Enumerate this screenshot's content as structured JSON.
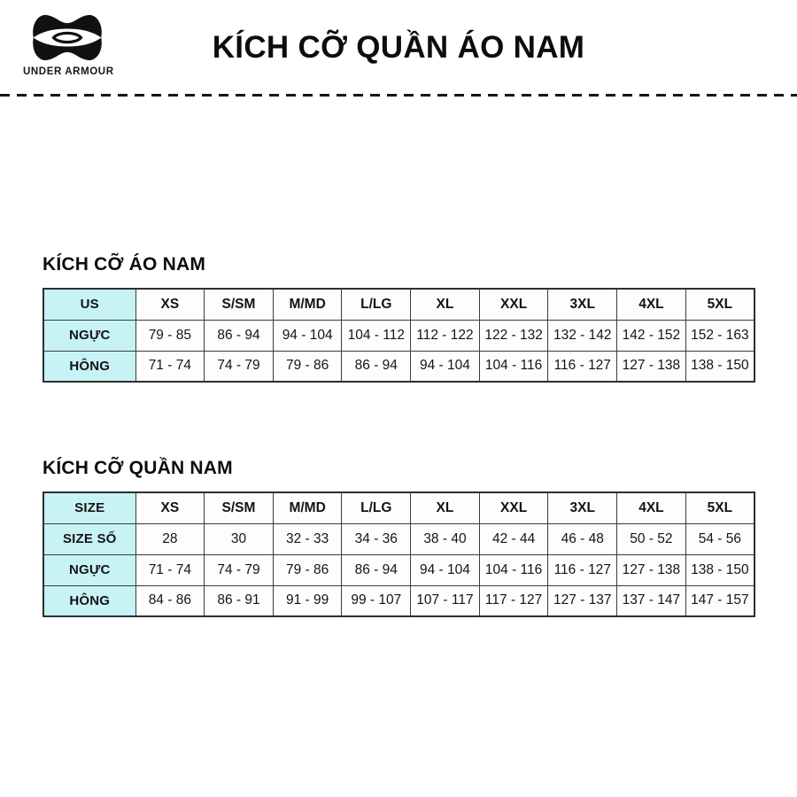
{
  "brand": {
    "name": "UNDER ARMOUR"
  },
  "title": "KÍCH CỠ QUẦN ÁO NAM",
  "colors": {
    "accent_cell": "#c7f3f5",
    "border": "#3c3c3c",
    "text": "#111111",
    "background": "#ffffff"
  },
  "tables": [
    {
      "section_title": "KÍCH CỠ ÁO NAM",
      "header": [
        "US",
        "XS",
        "S/SM",
        "M/MD",
        "L/LG",
        "XL",
        "XXL",
        "3XL",
        "4XL",
        "5XL"
      ],
      "rows": [
        {
          "label": "NGỰC",
          "values": [
            "79 - 85",
            "86 - 94",
            "94 - 104",
            "104 - 112",
            "112 - 122",
            "122 - 132",
            "132 - 142",
            "142 - 152",
            "152 - 163"
          ]
        },
        {
          "label": "HÔNG",
          "values": [
            "71 - 74",
            "74 - 79",
            "79 - 86",
            "86 - 94",
            "94 - 104",
            "104 - 116",
            "116 - 127",
            "127 - 138",
            "138 - 150"
          ]
        }
      ]
    },
    {
      "section_title": "KÍCH CỠ QUẦN NAM",
      "header": [
        "SIZE",
        "XS",
        "S/SM",
        "M/MD",
        "L/LG",
        "XL",
        "XXL",
        "3XL",
        "4XL",
        "5XL"
      ],
      "rows": [
        {
          "label": "SIZE SỐ",
          "values": [
            "28",
            "30",
            "32 - 33",
            "34 - 36",
            "38 - 40",
            "42 - 44",
            "46 - 48",
            "50 - 52",
            "54 - 56"
          ]
        },
        {
          "label": "NGỰC",
          "values": [
            "71 - 74",
            "74 - 79",
            "79 - 86",
            "86 - 94",
            "94 - 104",
            "104 - 116",
            "116 - 127",
            "127 - 138",
            "138 - 150"
          ]
        },
        {
          "label": "HÔNG",
          "values": [
            "84 - 86",
            "86 - 91",
            "91 - 99",
            "99 - 107",
            "107 - 117",
            "117 - 127",
            "127 - 137",
            "137 - 147",
            "147 - 157"
          ]
        }
      ]
    }
  ]
}
